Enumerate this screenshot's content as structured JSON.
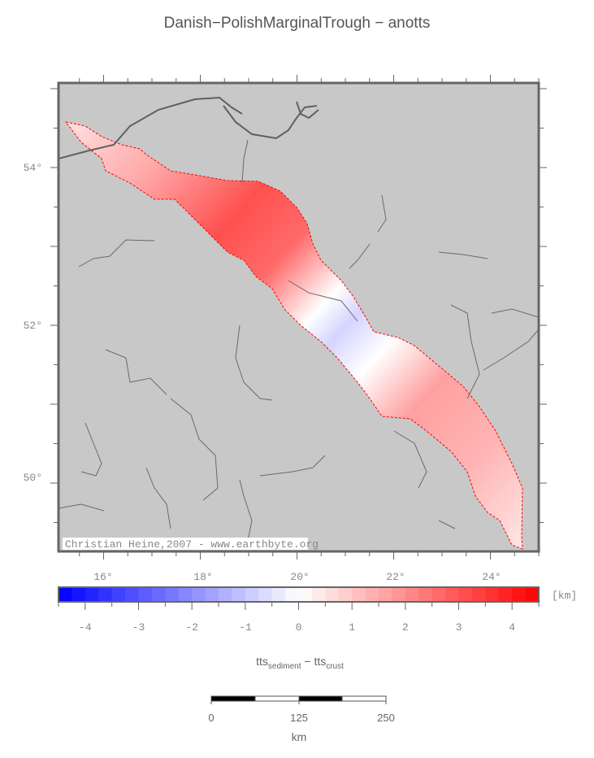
{
  "title": "Danish−PolishMarginalTrough − anotts",
  "map": {
    "lon_labels": [
      "16°",
      "18°",
      "20°",
      "22°",
      "24°"
    ],
    "lat_labels": [
      "54°",
      "52°",
      "50°"
    ],
    "credit": "Christian Heine,2007 - www.earthbyte.org",
    "land_color": "#c8c8c8",
    "coast_color": "#606060",
    "outline_color": "#ff0000"
  },
  "colorbar": {
    "ticks": [
      "-4",
      "-3",
      "-2",
      "-1",
      "0",
      "1",
      "2",
      "3",
      "4"
    ],
    "unit": "[km]",
    "range": [
      -4.5,
      4.5
    ],
    "step": 0.25,
    "low_color": "#0000ff",
    "mid_color": "#ffffff",
    "high_color": "#ff0000",
    "label_main1": "tts",
    "label_sub1": "sediment",
    "label_sep": " − ",
    "label_main2": "tts",
    "label_sub2": "crust"
  },
  "scalebar": {
    "ticks": [
      "0",
      "125",
      "250"
    ],
    "unit": "km"
  }
}
